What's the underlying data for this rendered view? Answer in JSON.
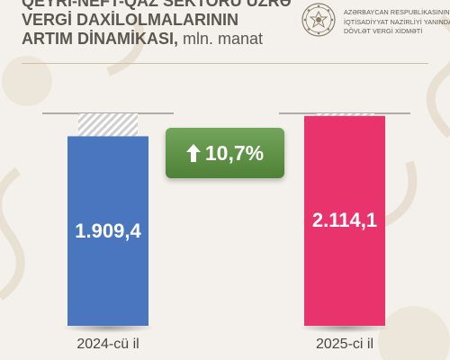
{
  "header": {
    "title_lines": [
      "QEYRİ-NEFT-QAZ SEKTORU ÜZRƏ",
      "VERGİ DAXİLOLMALARININ"
    ],
    "title_last_line": "ARTIM DİNAMİKASI,",
    "title_unit": "mln. manat"
  },
  "organization": {
    "lines": [
      "AZƏRBAYCAN RESPUBLİKASININ",
      "İQTİSADİYYAT NAZİRLİYİ YANINDA",
      "DÖVLƏT VERGİ XİDMƏTİ"
    ],
    "logo_icon": "state-emblem-icon"
  },
  "growth": {
    "label": "10,7%",
    "icon": "arrow-up-icon"
  },
  "colors": {
    "bar_2024": "#4a76c0",
    "bar_2025": "#e8336d",
    "growth_badge": "#5a8f42",
    "text": "#5c5650",
    "background": "#f4f1ec"
  },
  "chart_data": {
    "type": "bar",
    "title": "QEYRİ-NEFT-QAZ SEKTORU ÜZRƏ VERGİ DAXİLOLMALARININ ARTIM DİNAMİKASI, mln. manat",
    "categories": [
      "2024-cü il",
      "2025-ci il"
    ],
    "values": [
      1909.4,
      2114.1
    ],
    "data_labels": [
      "1.909,4",
      "2.114,1"
    ],
    "colors": [
      "#4a76c0",
      "#e8336d"
    ],
    "ylim": [
      0,
      2140
    ],
    "grid": false,
    "legend": "none"
  }
}
